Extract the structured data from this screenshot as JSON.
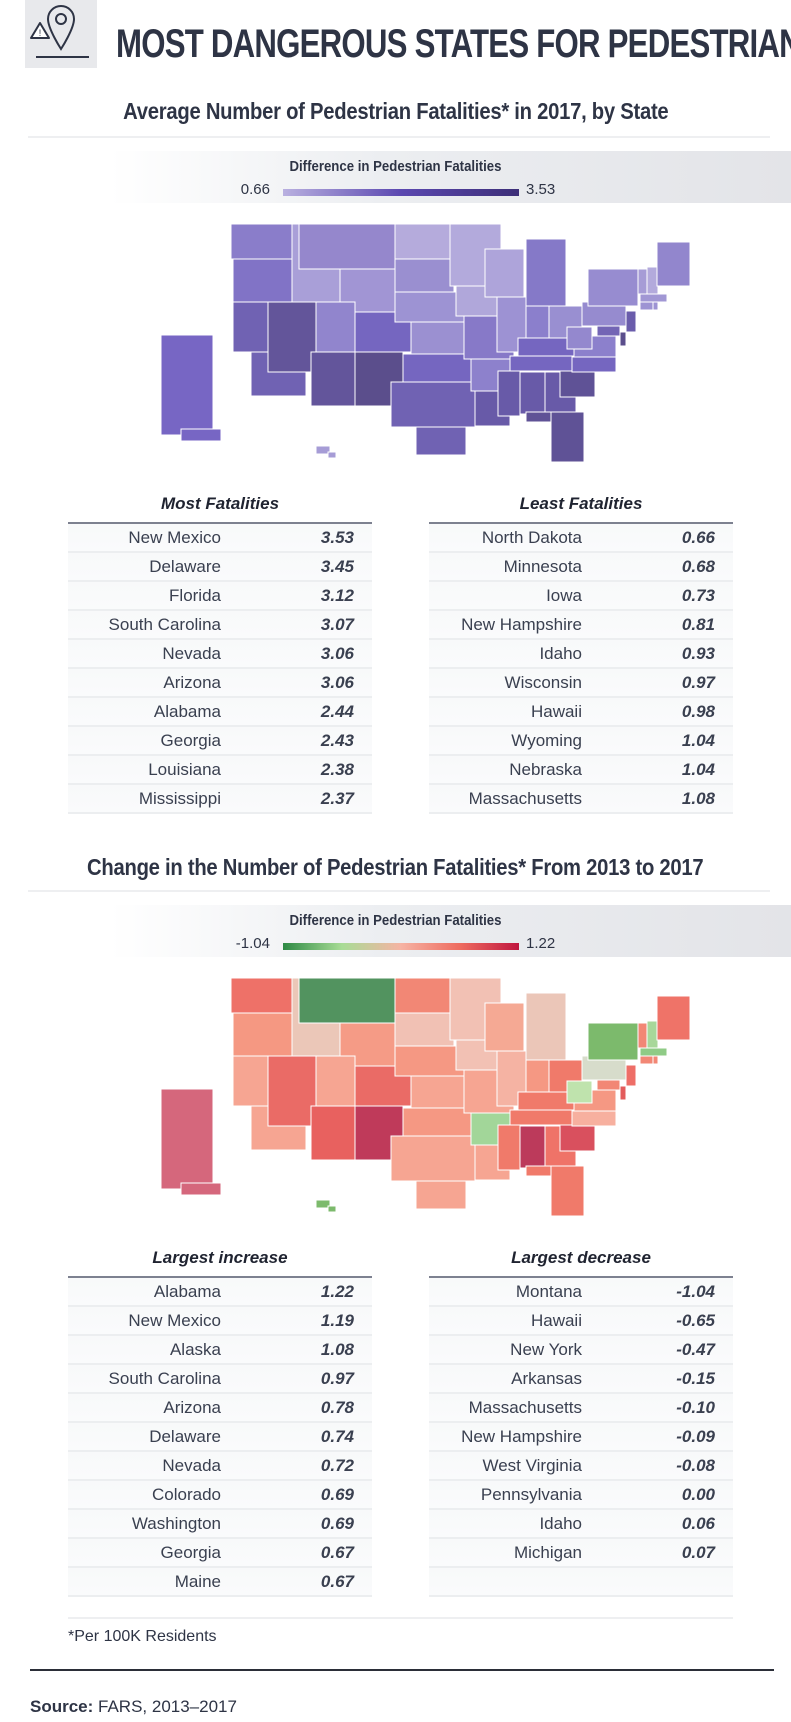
{
  "header": {
    "title": "MOST DANGEROUS STATES FOR PEDESTRIANS",
    "icon": "warning-location-pin-icon"
  },
  "chart_data": [
    {
      "type": "choropleth-map",
      "title": "Average Number of Pedestrian Fatalities* in 2017, by State",
      "legend": {
        "title": "Difference in Pedestrian Fatalities",
        "min": "0.66",
        "max": "3.53",
        "colors": [
          "#b9b0e0",
          "#5b48b0",
          "#3d2f78"
        ]
      },
      "state_colors": {
        "WA": "#8a7dca",
        "OR": "#8173c6",
        "CA": "#7062b3",
        "ID": "#a99fd8",
        "NV": "#63559a",
        "MT": "#9587cc",
        "WY": "#a195d4",
        "UT": "#9185cd",
        "CO": "#7566c0",
        "AZ": "#63559b",
        "NM": "#5b4e8c",
        "ND": "#b5abdc",
        "SD": "#9a8fd0",
        "NE": "#9d93d3",
        "KS": "#9b90d1",
        "OK": "#7566c0",
        "TX": "#7062b3",
        "MN": "#b3aadc",
        "IA": "#b0a7da",
        "MO": "#8779c8",
        "AR": "#8d81cc",
        "LA": "#685aa8",
        "WI": "#aea4da",
        "IL": "#9d92d3",
        "MI": "#8579c8",
        "IN": "#8b7fcc",
        "OH": "#998fd1",
        "KY": "#7566c0",
        "TN": "#7566c0",
        "MS": "#685aa8",
        "AL": "#685aa8",
        "GA": "#685aa8",
        "FL": "#5f5296",
        "SC": "#5f5296",
        "NC": "#7566c0",
        "VA": "#8c80cc",
        "WV": "#9488ce",
        "PA": "#968bcf",
        "NY": "#978cd0",
        "VT": "#a69cd6",
        "NH": "#b3aadc",
        "ME": "#9286cd",
        "MA": "#a197d4",
        "CT": "#9d93d3",
        "RI": "#9d93d3",
        "NJ": "#6a5cab",
        "DE": "#5b4e8c",
        "MD": "#7365b5",
        "AK": "#7766c4",
        "HI": "#a69cd6"
      },
      "tables": [
        {
          "heading": "Most Fatalities",
          "rows": [
            {
              "state": "New Mexico",
              "value": "3.53"
            },
            {
              "state": "Delaware",
              "value": "3.45"
            },
            {
              "state": "Florida",
              "value": "3.12"
            },
            {
              "state": "South Carolina",
              "value": "3.07"
            },
            {
              "state": "Nevada",
              "value": "3.06"
            },
            {
              "state": "Arizona",
              "value": "3.06"
            },
            {
              "state": "Alabama",
              "value": "2.44"
            },
            {
              "state": "Georgia",
              "value": "2.43"
            },
            {
              "state": "Louisiana",
              "value": "2.38"
            },
            {
              "state": "Mississippi",
              "value": "2.37"
            }
          ]
        },
        {
          "heading": "Least Fatalities",
          "rows": [
            {
              "state": "North Dakota",
              "value": "0.66"
            },
            {
              "state": "Minnesota",
              "value": "0.68"
            },
            {
              "state": "Iowa",
              "value": "0.73"
            },
            {
              "state": "New Hampshire",
              "value": "0.81"
            },
            {
              "state": "Idaho",
              "value": "0.93"
            },
            {
              "state": "Wisconsin",
              "value": "0.97"
            },
            {
              "state": "Hawaii",
              "value": "0.98"
            },
            {
              "state": "Wyoming",
              "value": "1.04"
            },
            {
              "state": "Nebraska",
              "value": "1.04"
            },
            {
              "state": "Massachusetts",
              "value": "1.08"
            }
          ]
        }
      ]
    },
    {
      "type": "choropleth-map",
      "title": "Change in the Number of Pedestrian Fatalities* From 2013 to 2017",
      "legend": {
        "title": "Difference in Pedestrian Fatalities",
        "min": "-1.04",
        "max": "1.22",
        "colors": [
          "#2e8a45",
          "#a8dc95",
          "#f6b3a3",
          "#ee6b5f",
          "#c0163f"
        ]
      },
      "state_colors": {
        "WA": "#ee7168",
        "OR": "#f59882",
        "CA": "#f6a592",
        "ID": "#ebc7b8",
        "NV": "#ea6b66",
        "MT": "#52935f",
        "WY": "#f59b86",
        "UT": "#f6a592",
        "CO": "#ea6b66",
        "AZ": "#e8615f",
        "NM": "#bf3a5a",
        "ND": "#f28775",
        "SD": "#f1c1b4",
        "NE": "#f59883",
        "KS": "#f6a592",
        "OK": "#f59883",
        "TX": "#f6a592",
        "MN": "#f2c1b4",
        "IA": "#f2c1b4",
        "MO": "#f6a592",
        "AR": "#a2d699",
        "LA": "#f6a592",
        "WI": "#f5a994",
        "IL": "#f5b3a3",
        "MI": "#ebc6b8",
        "IN": "#f59883",
        "OH": "#f07a6a",
        "KY": "#f07a6a",
        "TN": "#f07a6a",
        "MS": "#f07a6a",
        "AL": "#bc3a5b",
        "GA": "#ef7368",
        "FL": "#f07a6a",
        "SC": "#d9505e",
        "NC": "#f7b09f",
        "VA": "#f59883",
        "WV": "#bfe3ad",
        "PA": "#d7dccb",
        "NY": "#7cba6c",
        "VT": "#f28775",
        "NH": "#a8d79a",
        "ME": "#ef7368",
        "MA": "#8fcb86",
        "CT": "#f28775",
        "RI": "#f28775",
        "NJ": "#ee6e67",
        "DE": "#e35c5c",
        "MD": "#f28775",
        "AK": "#d5677c",
        "HI": "#7cba6c"
      },
      "tables": [
        {
          "heading": "Largest increase",
          "rows": [
            {
              "state": "Alabama",
              "value": "1.22"
            },
            {
              "state": "New Mexico",
              "value": "1.19"
            },
            {
              "state": "Alaska",
              "value": "1.08"
            },
            {
              "state": "South Carolina",
              "value": "0.97"
            },
            {
              "state": "Arizona",
              "value": "0.78"
            },
            {
              "state": "Delaware",
              "value": "0.74"
            },
            {
              "state": "Nevada",
              "value": "0.72"
            },
            {
              "state": "Colorado",
              "value": "0.69"
            },
            {
              "state": "Washington",
              "value": "0.69"
            },
            {
              "state": "Georgia",
              "value": "0.67"
            },
            {
              "state": "Maine",
              "value": "0.67"
            }
          ]
        },
        {
          "heading": "Largest decrease",
          "rows": [
            {
              "state": "Montana",
              "value": "-1.04"
            },
            {
              "state": "Hawaii",
              "value": "-0.65"
            },
            {
              "state": "New York",
              "value": "-0.47"
            },
            {
              "state": "Arkansas",
              "value": "-0.15"
            },
            {
              "state": "Massachusetts",
              "value": "-0.10"
            },
            {
              "state": "New Hampshire",
              "value": "-0.09"
            },
            {
              "state": "West Virginia",
              "value": "-0.08"
            },
            {
              "state": "Pennsylvania",
              "value": "0.00"
            },
            {
              "state": "Idaho",
              "value": "0.06"
            },
            {
              "state": "Michigan",
              "value": "0.07"
            },
            {
              "state": "",
              "value": ""
            }
          ]
        }
      ]
    }
  ],
  "footnote": "*Per 100K Residents",
  "source": {
    "label": "Source:",
    "text": " FARS, 2013–2017"
  }
}
